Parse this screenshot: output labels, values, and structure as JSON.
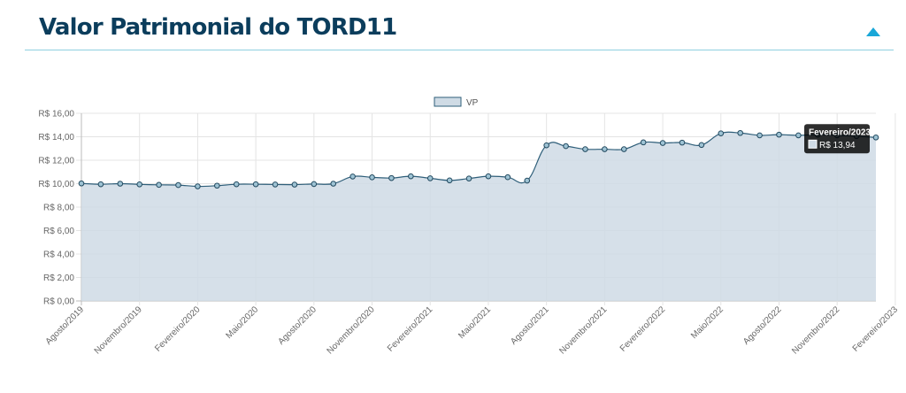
{
  "header": {
    "title": "Valor Patrimonial do TORD11",
    "toggle_icon": "triangle-up-icon",
    "accent_color": "#1aa7d8",
    "title_color": "#0b3d5c"
  },
  "chart_data": {
    "type": "line",
    "fill": true,
    "series": [
      {
        "name": "VP",
        "color": "#2f5f7a",
        "fill_color": "#cfdbe5",
        "values": [
          10.02,
          9.95,
          10.0,
          9.94,
          9.9,
          9.88,
          9.77,
          9.83,
          9.95,
          9.95,
          9.93,
          9.92,
          9.97,
          10.0,
          10.61,
          10.54,
          10.48,
          10.63,
          10.46,
          10.28,
          10.44,
          10.63,
          10.55,
          10.26,
          13.27,
          13.2,
          12.94,
          12.94,
          12.94,
          13.52,
          13.47,
          13.5,
          13.3,
          14.29,
          14.32,
          14.12,
          14.18,
          14.12,
          14.18,
          14.12,
          14.05,
          13.94
        ]
      }
    ],
    "x_tick_labels": [
      "Agosto/2019",
      "Novembro/2019",
      "Fevereiro/2020",
      "Maio/2020",
      "Agosto/2020",
      "Novembro/2020",
      "Fevereiro/2021",
      "Maio/2021",
      "Agosto/2021",
      "Novembro/2021",
      "Fevereiro/2022",
      "Maio/2022",
      "Agosto/2022",
      "Novembro/2022",
      "Fevereiro/2023"
    ],
    "y_tick_labels": [
      "R$ 0,00",
      "R$ 2,00",
      "R$ 4,00",
      "R$ 6,00",
      "R$ 8,00",
      "R$ 10,00",
      "R$ 12,00",
      "R$ 14,00",
      "R$ 16,00"
    ],
    "ylim": [
      0,
      16
    ],
    "y_step": 2,
    "grid": true,
    "legend_position": "top-center",
    "tooltip": {
      "title": "Fevereiro/2023",
      "value_label": "R$ 13,94",
      "point_index": 41
    }
  }
}
